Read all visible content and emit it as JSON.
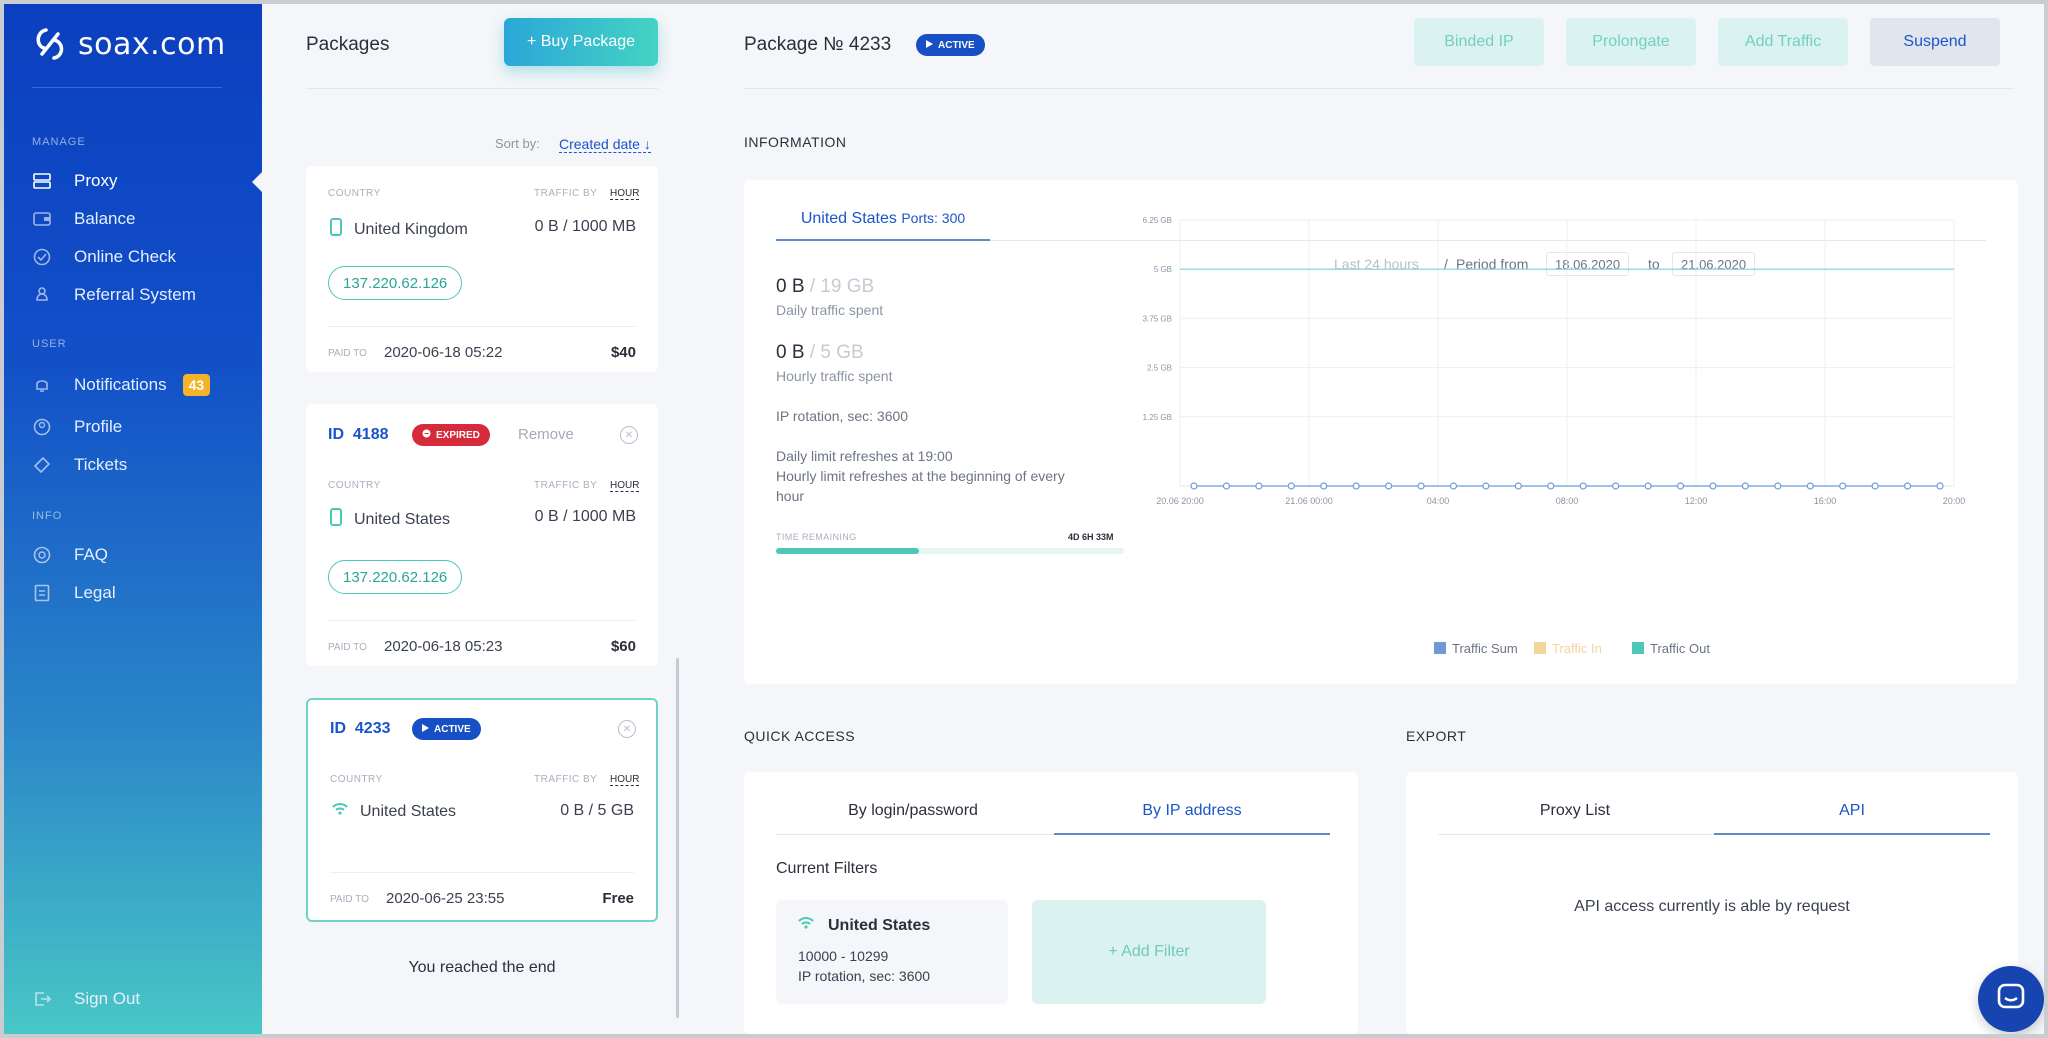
{
  "brand": {
    "name": "soax.com"
  },
  "sidebar": {
    "sections": {
      "manage": "MANAGE",
      "user": "USER",
      "info": "INFO"
    },
    "manage_items": [
      {
        "label": "Proxy",
        "icon": "server-icon"
      },
      {
        "label": "Balance",
        "icon": "wallet-icon"
      },
      {
        "label": "Online Check",
        "icon": "check-circle-icon"
      },
      {
        "label": "Referral System",
        "icon": "referral-icon"
      }
    ],
    "user_items": [
      {
        "label": "Notifications",
        "icon": "bell-icon",
        "badge": "43"
      },
      {
        "label": "Profile",
        "icon": "user-icon"
      },
      {
        "label": "Tickets",
        "icon": "ticket-icon"
      }
    ],
    "info_items": [
      {
        "label": "FAQ",
        "icon": "faq-icon"
      },
      {
        "label": "Legal",
        "icon": "document-icon"
      }
    ],
    "sign_out": "Sign Out"
  },
  "packages": {
    "title": "Packages",
    "buy_button": "+ Buy Package",
    "sort_label": "Sort by:",
    "sort_value": "Created date ↓",
    "country_label": "COUNTRY",
    "traffic_by_label": "TRAFFIC BY",
    "traffic_by_value": "HOUR",
    "paid_to_label": "PAID TO",
    "remove_label": "Remove",
    "cards": [
      {
        "country": "United Kingdom",
        "traffic": "0 B / 1000 MB",
        "ip": "137.220.62.126",
        "paid_to": "2020-06-18 05:22",
        "price": "$40"
      },
      {
        "id_prefix": "ID",
        "id": "4188",
        "status": "EXPIRED",
        "country": "United States",
        "traffic": "0 B / 1000 MB",
        "ip": "137.220.62.126",
        "paid_to": "2020-06-18 05:23",
        "price": "$60"
      },
      {
        "id_prefix": "ID",
        "id": "4233",
        "status": "ACTIVE",
        "country": "United States",
        "traffic": "0 B / 5 GB",
        "paid_to": "2020-06-25 23:55",
        "price": "Free"
      }
    ],
    "end_text": "You reached the end"
  },
  "main": {
    "title": "Package № 4233",
    "status": "ACTIVE",
    "buttons": {
      "binded_ip": "Binded IP",
      "prolongate": "Prolongate",
      "add_traffic": "Add Traffic",
      "suspend": "Suspend"
    },
    "information_title": "INFORMATION",
    "info_tab": {
      "country": "United States",
      "ports": "Ports: 300"
    },
    "daily_value": "0 B",
    "daily_limit": "/ 19 GB",
    "daily_label": "Daily traffic spent",
    "hourly_value": "0 B",
    "hourly_limit": "/ 5 GB",
    "hourly_label": "Hourly traffic spent",
    "ip_rotation": "IP rotation, sec: 3600",
    "daily_refresh": "Daily limit refreshes at 19:00",
    "hourly_refresh": "Hourly limit refreshes at the beginning of every hour",
    "time_remaining_label": "TIME REMAINING",
    "time_remaining_value": "4D 6H 33M",
    "time_remaining_fraction": 0.41,
    "period": {
      "last_24": "Last 24 hours",
      "slash": "/",
      "from_label": "Period from",
      "from": "18.06.2020",
      "to_label": "to",
      "to": "21.06.2020"
    },
    "quick_access_title": "QUICK ACCESS",
    "qa_tabs": [
      "By login/password",
      "By IP address"
    ],
    "current_filters": "Current Filters",
    "filter": {
      "country": "United States",
      "ports": "10000 - 10299",
      "rotation": "IP rotation, sec: 3600"
    },
    "add_filter": "+ Add Filter",
    "export_title": "EXPORT",
    "export_tabs": [
      "Proxy List",
      "API"
    ],
    "api_text": "API access currently is able by request"
  },
  "colors": {
    "sidebar_top": "#0b3fbf",
    "sidebar_bottom": "#49c7c6",
    "accent_blue": "#1b55c9",
    "teal": "#4cc7b8",
    "expired": "#d62b3b"
  },
  "chart_data": {
    "type": "line",
    "title": "",
    "y_ticks": [
      "6.25 GB",
      "5 GB",
      "3.75 GB",
      "2.5 GB",
      "1.25 GB"
    ],
    "ylim": [
      0,
      6.25
    ],
    "y_unit": "GB",
    "x_tick_labels": [
      "20.06 20:00",
      "21.06 00:00",
      "04:00",
      "08:00",
      "12:00",
      "16:00",
      "20:00"
    ],
    "limit_line": 5,
    "series": [
      {
        "name": "Traffic Sum",
        "color": "#6f9ad8",
        "values": [
          0,
          0,
          0,
          0,
          0,
          0,
          0,
          0,
          0,
          0,
          0,
          0,
          0,
          0,
          0,
          0,
          0,
          0,
          0,
          0,
          0,
          0,
          0,
          0
        ]
      },
      {
        "name": "Traffic In",
        "color": "#f3d49a",
        "values": []
      },
      {
        "name": "Traffic Out",
        "color": "#4cc7b8",
        "values": []
      }
    ],
    "grid": true,
    "legend": "bottom"
  }
}
